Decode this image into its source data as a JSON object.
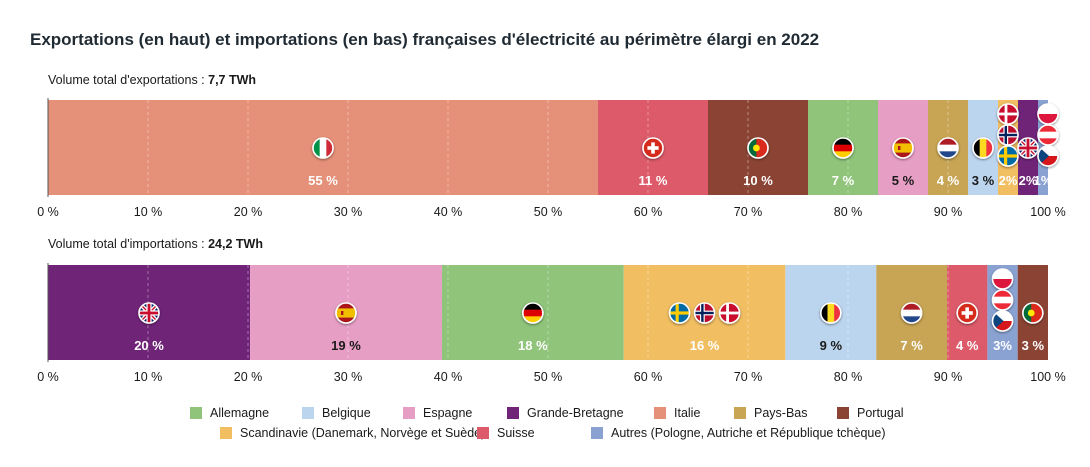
{
  "title": "Exportations (en haut) et importations (en bas) françaises d'électricité au périmètre élargi en 2022",
  "exports_total": {
    "prefix": "Volume total d'exportations : ",
    "value": "7,7 TWh"
  },
  "imports_total": {
    "prefix": "Volume total d'importations : ",
    "value": "24,2 TWh"
  },
  "colors": {
    "Allemagne": "#8fc47a",
    "Belgique": "#bcd5ef",
    "Espagne": "#e79ec5",
    "Grande-Bretagne": "#6f2478",
    "Italie": "#e59078",
    "Pays-Bas": "#c8a554",
    "Portugal": "#8b4434",
    "Scandinavie": "#f2be62",
    "Suisse": "#dc5a6a",
    "Autres": "#8aa2d2"
  },
  "legend": [
    {
      "key": "Allemagne",
      "label": "Allemagne"
    },
    {
      "key": "Belgique",
      "label": "Belgique"
    },
    {
      "key": "Espagne",
      "label": "Espagne"
    },
    {
      "key": "Grande-Bretagne",
      "label": "Grande-Bretagne"
    },
    {
      "key": "Italie",
      "label": "Italie"
    },
    {
      "key": "Pays-Bas",
      "label": "Pays-Bas"
    },
    {
      "key": "Portugal",
      "label": "Portugal"
    },
    {
      "key": "Scandinavie",
      "label": "Scandinavie (Danemark, Norvège et Suède)"
    },
    {
      "key": "Suisse",
      "label": "Suisse"
    },
    {
      "key": "Autres",
      "label": "Autres (Pologne, Autriche et République tchèque)"
    }
  ],
  "chart_data": {
    "type": "bar",
    "orientation": "horizontal-stacked-100",
    "xlim": [
      0,
      100
    ],
    "ticks": [
      "0 %",
      "10 %",
      "20 %",
      "30 %",
      "40 %",
      "50 %",
      "60 %",
      "70 %",
      "80 %",
      "90 %",
      "100 %"
    ],
    "grid": true,
    "legend_position": "bottom",
    "series": [
      {
        "name": "Exportations",
        "segments": [
          {
            "country": "Italie",
            "value": 55,
            "label": "55 %",
            "flags": [
              "it"
            ]
          },
          {
            "country": "Suisse",
            "value": 11,
            "label": "11 %",
            "flags": [
              "ch"
            ]
          },
          {
            "country": "Portugal",
            "value": 10,
            "label": "10 %",
            "flags": [
              "pt"
            ]
          },
          {
            "country": "Allemagne",
            "value": 7,
            "label": "7 %",
            "flags": [
              "de"
            ]
          },
          {
            "country": "Espagne",
            "value": 5,
            "label": "5 %",
            "flags": [
              "es"
            ]
          },
          {
            "country": "Pays-Bas",
            "value": 4,
            "label": "4 %",
            "flags": [
              "nl"
            ]
          },
          {
            "country": "Belgique",
            "value": 3,
            "label": "3 %",
            "flags": [
              "be"
            ]
          },
          {
            "country": "Scandinavie",
            "value": 2,
            "label": "2%",
            "flags": [
              "dk",
              "no",
              "se"
            ]
          },
          {
            "country": "Grande-Bretagne",
            "value": 2,
            "label": "2%",
            "flags": [
              "gb"
            ]
          },
          {
            "country": "Autres",
            "value": 1,
            "label": "1%",
            "flags": [
              "pl",
              "at",
              "cz"
            ]
          }
        ]
      },
      {
        "name": "Importations",
        "segments": [
          {
            "country": "Grande-Bretagne",
            "value": 20,
            "label": "20 %",
            "flags": [
              "gb"
            ]
          },
          {
            "country": "Espagne",
            "value": 19,
            "label": "19 %",
            "flags": [
              "es"
            ]
          },
          {
            "country": "Allemagne",
            "value": 18,
            "label": "18 %",
            "flags": [
              "de"
            ]
          },
          {
            "country": "Scandinavie",
            "value": 16,
            "label": "16 %",
            "flags": [
              "se",
              "no",
              "dk"
            ]
          },
          {
            "country": "Belgique",
            "value": 9,
            "label": "9 %",
            "flags": [
              "be"
            ]
          },
          {
            "country": "Pays-Bas",
            "value": 7,
            "label": "7 %",
            "flags": [
              "nl"
            ]
          },
          {
            "country": "Suisse",
            "value": 4,
            "label": "4 %",
            "flags": [
              "ch"
            ]
          },
          {
            "country": "Autres",
            "value": 3,
            "label": "3%",
            "flags": [
              "pl",
              "at",
              "cz"
            ]
          },
          {
            "country": "Portugal",
            "value": 3,
            "label": "3 %",
            "flags": [
              "pt"
            ]
          }
        ]
      }
    ]
  }
}
